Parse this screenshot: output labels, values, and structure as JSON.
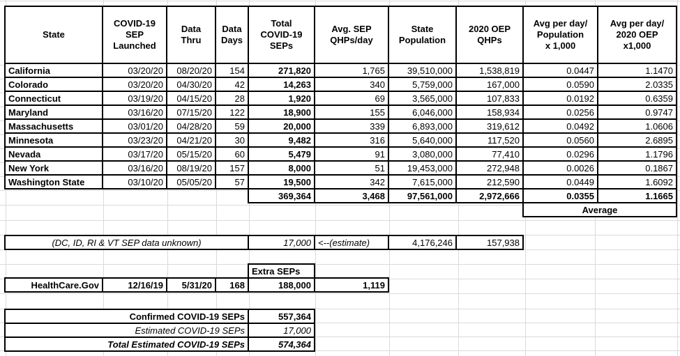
{
  "main_table": {
    "columns": [
      {
        "label": "State"
      },
      {
        "label": "COVID-19\nSEP\nLaunched"
      },
      {
        "label": "Data\nThru"
      },
      {
        "label": "Data\nDays"
      },
      {
        "label": "Total\nCOVID-19\nSEPs"
      },
      {
        "label": "Avg. SEP\nQHPs/day"
      },
      {
        "label": "State\nPopulation"
      },
      {
        "label": "2020 OEP\nQHPs"
      },
      {
        "label": "Avg per day/\nPopulation\nx 1,000"
      },
      {
        "label": "Avg per day/\n2020 OEP\nx1,000"
      }
    ],
    "rows": [
      {
        "state": "California",
        "launched": "03/20/20",
        "data_thru": "08/20/20",
        "data_days": "154",
        "total_seps": "271,820",
        "avg_sep_qhps_day": "1,765",
        "population": "39,510,000",
        "oep_qhps": "1,538,819",
        "avg_per_pop": "0.0447",
        "avg_per_oep": "1.1470"
      },
      {
        "state": "Colorado",
        "launched": "03/20/20",
        "data_thru": "04/30/20",
        "data_days": "42",
        "total_seps": "14,263",
        "avg_sep_qhps_day": "340",
        "population": "5,759,000",
        "oep_qhps": "167,000",
        "avg_per_pop": "0.0590",
        "avg_per_oep": "2.0335"
      },
      {
        "state": "Connecticut",
        "launched": "03/19/20",
        "data_thru": "04/15/20",
        "data_days": "28",
        "total_seps": "1,920",
        "avg_sep_qhps_day": "69",
        "population": "3,565,000",
        "oep_qhps": "107,833",
        "avg_per_pop": "0.0192",
        "avg_per_oep": "0.6359"
      },
      {
        "state": "Maryland",
        "launched": "03/16/20",
        "data_thru": "07/15/20",
        "data_days": "122",
        "total_seps": "18,900",
        "avg_sep_qhps_day": "155",
        "population": "6,046,000",
        "oep_qhps": "158,934",
        "avg_per_pop": "0.0256",
        "avg_per_oep": "0.9747"
      },
      {
        "state": "Massachusetts",
        "launched": "03/01/20",
        "data_thru": "04/28/20",
        "data_days": "59",
        "total_seps": "20,000",
        "avg_sep_qhps_day": "339",
        "population": "6,893,000",
        "oep_qhps": "319,612",
        "avg_per_pop": "0.0492",
        "avg_per_oep": "1.0606"
      },
      {
        "state": "Minnesota",
        "launched": "03/23/20",
        "data_thru": "04/21/20",
        "data_days": "30",
        "total_seps": "9,482",
        "avg_sep_qhps_day": "316",
        "population": "5,640,000",
        "oep_qhps": "117,520",
        "avg_per_pop": "0.0560",
        "avg_per_oep": "2.6895"
      },
      {
        "state": "Nevada",
        "launched": "03/17/20",
        "data_thru": "05/15/20",
        "data_days": "60",
        "total_seps": "5,479",
        "avg_sep_qhps_day": "91",
        "population": "3,080,000",
        "oep_qhps": "77,410",
        "avg_per_pop": "0.0296",
        "avg_per_oep": "1.1796"
      },
      {
        "state": "New York",
        "launched": "03/16/20",
        "data_thru": "08/19/20",
        "data_days": "157",
        "total_seps": "8,000",
        "avg_sep_qhps_day": "51",
        "population": "19,453,000",
        "oep_qhps": "272,948",
        "avg_per_pop": "0.0026",
        "avg_per_oep": "0.1867"
      },
      {
        "state": "Washington State",
        "launched": "03/10/20",
        "data_thru": "05/05/20",
        "data_days": "57",
        "total_seps": "19,500",
        "avg_sep_qhps_day": "342",
        "population": "7,615,000",
        "oep_qhps": "212,590",
        "avg_per_pop": "0.0449",
        "avg_per_oep": "1.6092"
      }
    ],
    "totals": {
      "total_seps": "369,364",
      "avg_sep_qhps_day": "3,468",
      "population": "97,561,000",
      "oep_qhps": "2,972,666",
      "avg_per_pop": "0.0355",
      "avg_per_oep": "1.1665"
    },
    "average_label": "Average"
  },
  "estimate_row": {
    "note": "(DC, ID, RI & VT SEP data unknown)",
    "total_seps": "17,000",
    "arrow_note": "<--(estimate)",
    "population": "4,176,246",
    "oep_qhps": "157,938"
  },
  "extra_seps": {
    "header": "Extra SEPs",
    "row": {
      "name": "HealthCare.Gov",
      "launched": "12/16/19",
      "data_thru": "5/31/20",
      "data_days": "168",
      "total_seps": "188,000",
      "avg_sep_qhps_day": "1,119"
    }
  },
  "summary": {
    "rows": [
      {
        "label": "Confirmed COVID-19 SEPs",
        "value": "557,364"
      },
      {
        "label": "Estimated COVID-19 SEPs",
        "value": "17,000"
      },
      {
        "label": "Total Estimated COVID-19 SEPs",
        "value": "574,364"
      }
    ]
  },
  "colors": {
    "border": "#000000",
    "gridline": "#dadada",
    "background": "#ffffff",
    "text": "#000000"
  }
}
